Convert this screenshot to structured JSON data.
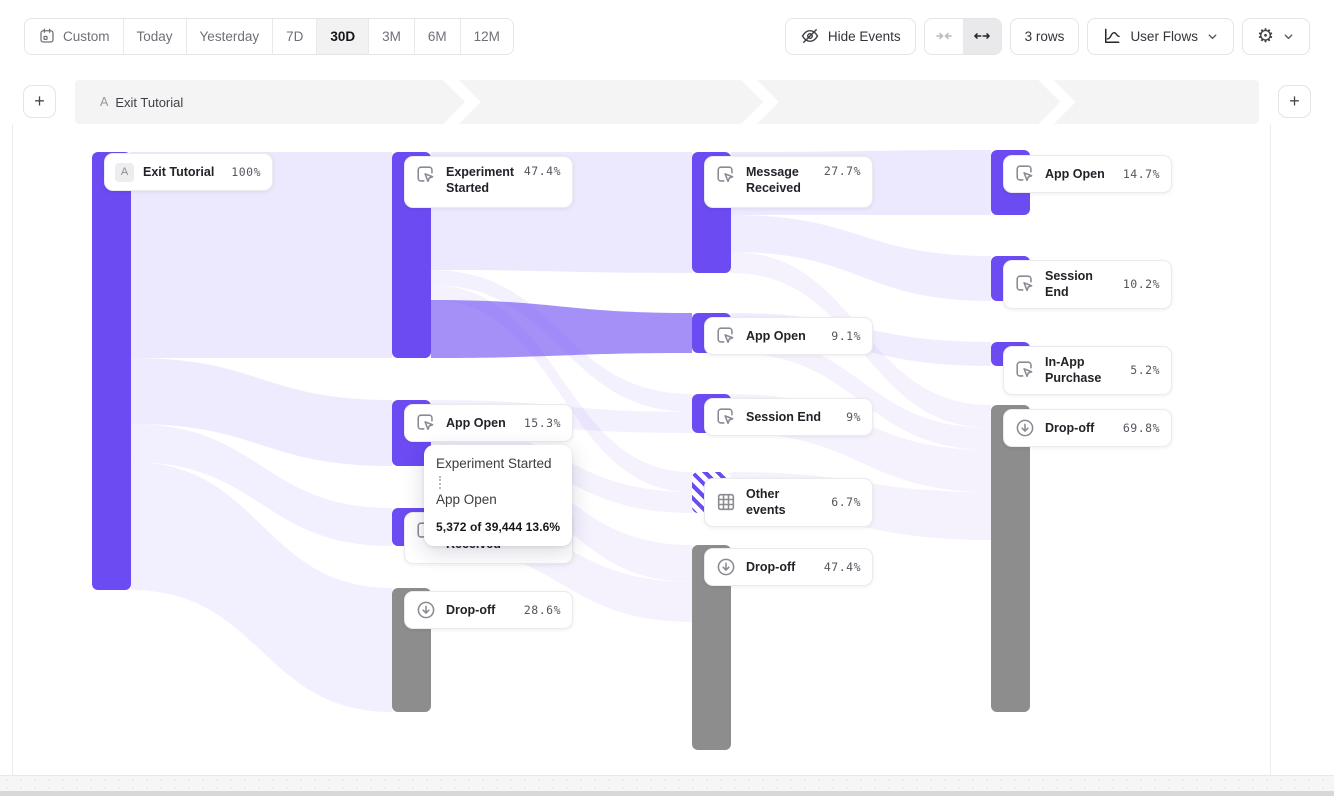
{
  "toolbar": {
    "date_ranges": [
      "Custom",
      "Today",
      "Yesterday",
      "7D",
      "30D",
      "3M",
      "6M",
      "12M"
    ],
    "active_range": "30D",
    "custom_icon": "calendar-icon",
    "hide_events": {
      "label": "Hide Events",
      "icon": "eye-off-icon"
    },
    "collapse_icon": "arrows-collapse-icon",
    "expand_icon": "arrows-expand-icon",
    "rows_button": "3 rows",
    "view_selector": {
      "label": "User Flows",
      "icon": "flow-chart-icon"
    },
    "settings_icon": "gear-icon"
  },
  "flow_header": {
    "add_step_left": "+",
    "add_step_right": "+",
    "steps": [
      {
        "badge": "A",
        "label": "Exit Tutorial"
      }
    ]
  },
  "tooltip": {
    "source": "Experiment Started",
    "target": "App Open",
    "detail": "5,372 of 39,444 13.6%"
  },
  "colors": {
    "accent": "#6C4BF2",
    "dropoff_gray": "#8D8D8D",
    "ribbon_base": "#6D4CF4",
    "header_bar": "#f4f4f5"
  },
  "chart_data": {
    "type": "sankey",
    "title": "User Flows — Exit Tutorial",
    "start_event_badge": "A",
    "columns": [
      {
        "step": 1,
        "nodes": [
          {
            "label": "Exit Tutorial",
            "value": "100%",
            "kind": "event"
          }
        ]
      },
      {
        "step": 2,
        "nodes": [
          {
            "label": "Experiment Started",
            "value": "47.4%",
            "kind": "event"
          },
          {
            "label": "App Open",
            "value": "15.3%",
            "kind": "event"
          },
          {
            "label": "Message Received",
            "value": "8.7%",
            "kind": "event"
          },
          {
            "label": "Drop-off",
            "value": "28.6%",
            "kind": "dropoff"
          }
        ]
      },
      {
        "step": 3,
        "nodes": [
          {
            "label": "Message Received",
            "value": "27.7%",
            "kind": "event"
          },
          {
            "label": "App Open",
            "value": "9.1%",
            "kind": "event"
          },
          {
            "label": "Session End",
            "value": "9%",
            "kind": "event"
          },
          {
            "label": "Other events",
            "value": "6.7%",
            "kind": "other"
          },
          {
            "label": "Drop-off",
            "value": "47.4%",
            "kind": "dropoff"
          }
        ]
      },
      {
        "step": 4,
        "nodes": [
          {
            "label": "App Open",
            "value": "14.7%",
            "kind": "event"
          },
          {
            "label": "Session End",
            "value": "10.2%",
            "kind": "event"
          },
          {
            "label": "In-App Purchase",
            "value": "5.2%",
            "kind": "event"
          },
          {
            "label": "Drop-off",
            "value": "69.8%",
            "kind": "dropoff"
          }
        ]
      }
    ],
    "highlighted_link": {
      "source": "Experiment Started",
      "target": "App Open",
      "users": "5,372",
      "total": "39,444",
      "percent": "13.6%"
    },
    "links": [
      {
        "source": "Exit Tutorial",
        "target": "Experiment Started"
      },
      {
        "source": "Exit Tutorial",
        "target": "App Open"
      },
      {
        "source": "Exit Tutorial",
        "target": "Message Received"
      },
      {
        "source": "Exit Tutorial",
        "target": "Drop-off"
      },
      {
        "source": "Experiment Started",
        "target": "Message Received"
      },
      {
        "source": "Experiment Started",
        "target": "App Open"
      },
      {
        "source": "Experiment Started",
        "target": "Session End"
      },
      {
        "source": "Experiment Started",
        "target": "Other events"
      },
      {
        "source": "App Open",
        "target": "Session End"
      },
      {
        "source": "App Open",
        "target": "Other events"
      },
      {
        "source": "App Open",
        "target": "Drop-off"
      },
      {
        "source": "Message Received",
        "target": "Drop-off"
      },
      {
        "source": "Message Received",
        "target": "App Open"
      },
      {
        "source": "Message Received",
        "target": "Session End"
      },
      {
        "source": "Message Received",
        "target": "Drop-off"
      },
      {
        "source": "App Open",
        "target": "In-App Purchase"
      },
      {
        "source": "App Open",
        "target": "Drop-off"
      },
      {
        "source": "Session End",
        "target": "Drop-off"
      },
      {
        "source": "Other events",
        "target": "Drop-off"
      }
    ]
  }
}
